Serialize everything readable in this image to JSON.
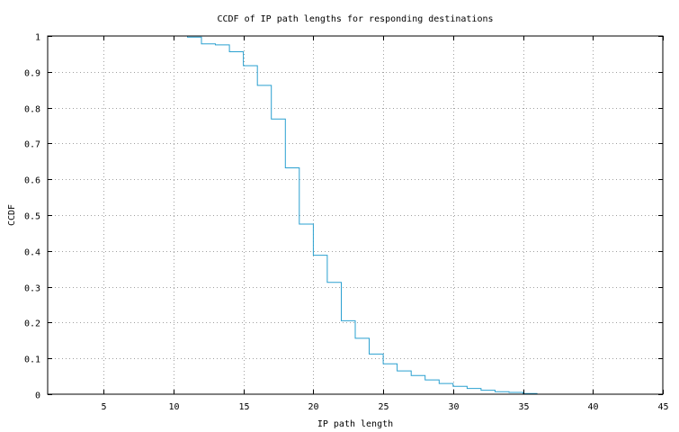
{
  "chart_data": {
    "type": "line",
    "step": true,
    "title": "CCDF of IP path lengths for responding destinations",
    "xlabel": "IP path length",
    "ylabel": "CCDF",
    "xlim": [
      1,
      45
    ],
    "ylim": [
      0,
      1
    ],
    "xticks": [
      5,
      10,
      15,
      20,
      25,
      30,
      35,
      40,
      45
    ],
    "xtick_labels": [
      "5",
      "10",
      "15",
      "20",
      "25",
      "30",
      "35",
      "40",
      "45"
    ],
    "yticks": [
      0,
      0.1,
      0.2,
      0.3,
      0.4,
      0.5,
      0.6,
      0.7,
      0.8,
      0.9,
      1
    ],
    "ytick_labels": [
      "0",
      "0.1",
      "0.2",
      "0.3",
      "0.4",
      "0.5",
      "0.6",
      "0.7",
      "0.8",
      "0.9",
      "1"
    ],
    "grid": true,
    "legend": "none",
    "series": [
      {
        "color": "#2aa0d0",
        "x": [
          10,
          11,
          12,
          13,
          14,
          15,
          16,
          17,
          18,
          19,
          20,
          21,
          22,
          23,
          24,
          25,
          26,
          27,
          28,
          29,
          30,
          31,
          32,
          33,
          34,
          35,
          36
        ],
        "y": [
          1.0,
          0.997,
          0.978,
          0.975,
          0.956,
          0.917,
          0.862,
          0.768,
          0.632,
          0.475,
          0.388,
          0.312,
          0.205,
          0.156,
          0.112,
          0.085,
          0.065,
          0.052,
          0.04,
          0.03,
          0.022,
          0.016,
          0.011,
          0.007,
          0.005,
          0.002,
          0.0
        ]
      }
    ]
  }
}
